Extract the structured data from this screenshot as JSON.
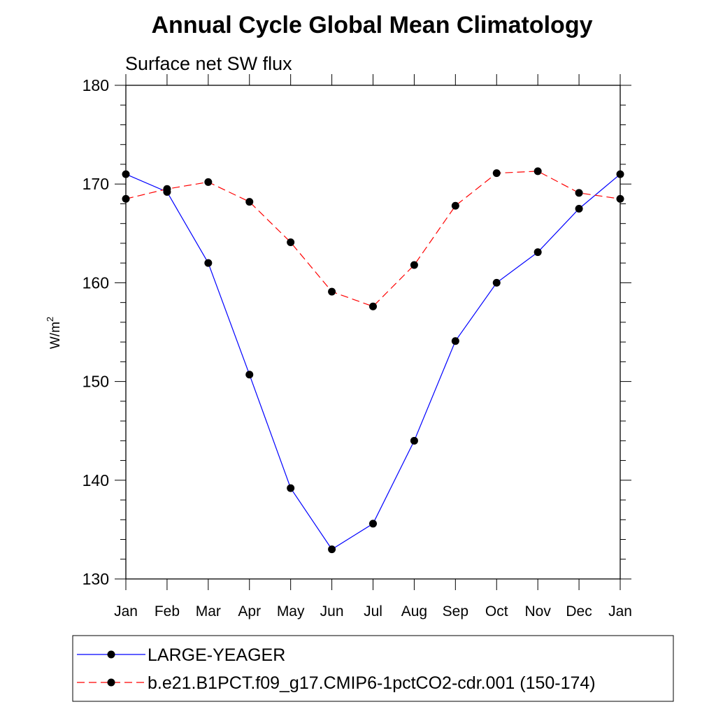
{
  "chart_data": {
    "type": "line",
    "title": "Annual Cycle Global Mean Climatology",
    "subtitle": "Surface net SW flux",
    "ylabel": "W/m",
    "ylabel_sup": "2",
    "xlabel": "",
    "categories": [
      "Jan",
      "Feb",
      "Mar",
      "Apr",
      "May",
      "Jun",
      "Jul",
      "Aug",
      "Sep",
      "Oct",
      "Nov",
      "Dec",
      "Jan"
    ],
    "ylim": [
      130,
      180
    ],
    "yticks": [
      130,
      140,
      150,
      160,
      170,
      180
    ],
    "grid": false,
    "legend_position": "bottom",
    "series": [
      {
        "name": "LARGE-YEAGER",
        "color": "#0000ff",
        "line_style": "solid",
        "values": [
          171.0,
          169.2,
          162.0,
          150.7,
          139.2,
          133.0,
          135.6,
          144.0,
          154.1,
          160.0,
          163.1,
          167.5,
          171.0
        ]
      },
      {
        "name": "b.e21.B1PCT.f09_g17.CMIP6-1pctCO2-cdr.001 (150-174)",
        "color": "#ff0000",
        "line_style": "dashed",
        "values": [
          168.5,
          169.5,
          170.2,
          168.2,
          164.1,
          159.1,
          157.6,
          161.8,
          167.8,
          171.1,
          171.3,
          169.1,
          168.5
        ]
      }
    ]
  }
}
